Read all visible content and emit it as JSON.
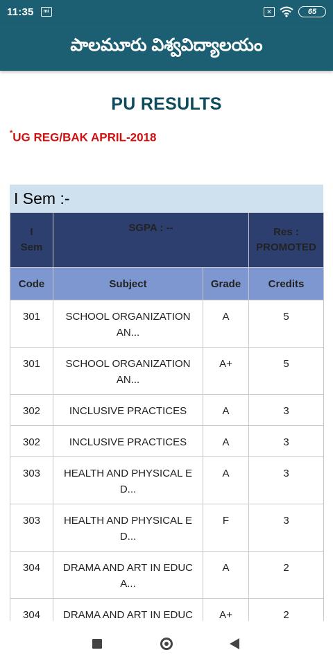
{
  "status_bar": {
    "time": "11:35",
    "mi_icon": "mi",
    "x_icon": "✕",
    "battery": "65"
  },
  "app": {
    "title": "పాలమూరు విశ్వవిద్యాలయం"
  },
  "page": {
    "title": "PU RESULTS",
    "exam_asterisk": "*",
    "exam": "UG REG/BAK APRIL-2018"
  },
  "semester": {
    "header": "I Sem :-",
    "summary": {
      "sem_label_line1": "I",
      "sem_label_line2": "Sem",
      "sgpa": "SGPA : --",
      "res_line1": "Res :",
      "res_line2": "PROMOTED"
    },
    "columns": {
      "code": "Code",
      "subject": "Subject",
      "grade": "Grade",
      "credits": "Credits"
    },
    "rows": [
      {
        "code": "301",
        "subject": "SCHOOL ORGANIZATION AN...",
        "grade": "A",
        "credits": "5"
      },
      {
        "code": "301",
        "subject": "SCHOOL ORGANIZATION AN...",
        "grade": "A+",
        "credits": "5"
      },
      {
        "code": "302",
        "subject": "INCLUSIVE PRACTICES",
        "grade": "A",
        "credits": "3"
      },
      {
        "code": "302",
        "subject": "INCLUSIVE PRACTICES",
        "grade": "A",
        "credits": "3"
      },
      {
        "code": "303",
        "subject": "HEALTH AND PHYSICAL E D...",
        "grade": "A",
        "credits": "3"
      },
      {
        "code": "303",
        "subject": "HEALTH AND PHYSICAL E D...",
        "grade": "F",
        "credits": "3"
      },
      {
        "code": "304",
        "subject": "DRAMA AND ART IN EDUC A...",
        "grade": "A",
        "credits": "2"
      },
      {
        "code": "304",
        "subject": "DRAMA AND ART IN EDUC A...",
        "grade": "A+",
        "credits": "2"
      }
    ]
  },
  "colors": {
    "primary": "#1c5f72",
    "summary_header": "#2d3f6f",
    "column_header": "#7e97d0",
    "sem_header_bg": "#cfe0ee",
    "exam_text": "#d01010"
  },
  "nav_icons": [
    "recent-apps-icon",
    "home-icon",
    "back-icon"
  ]
}
